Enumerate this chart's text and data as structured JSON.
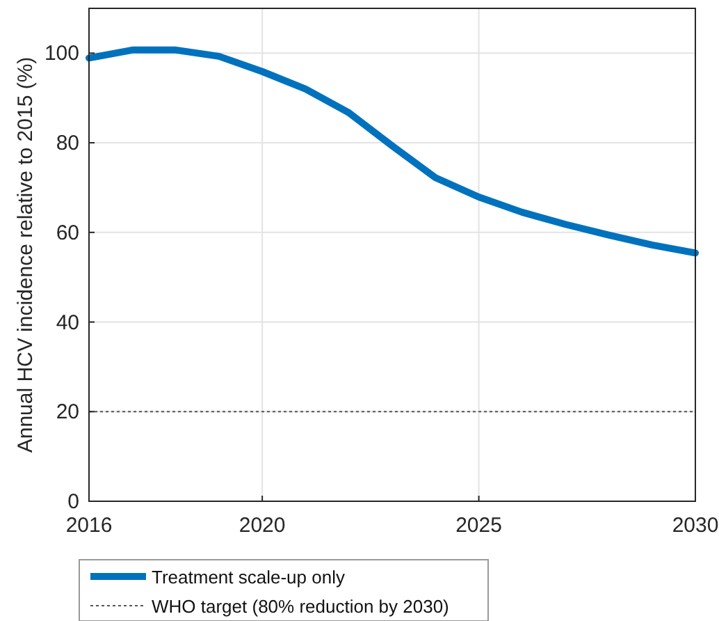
{
  "chart_data": {
    "type": "line",
    "ylabel": "Annual HCV incidence relative to 2015 (%)",
    "x": [
      2016,
      2017,
      2018,
      2019,
      2020,
      2021,
      2022,
      2023,
      2024,
      2025,
      2026,
      2027,
      2028,
      2029,
      2030
    ],
    "series": [
      {
        "name": "Treatment scale-up only",
        "color": "#0072bd",
        "values": [
          98.9,
          100.7,
          100.7,
          99.3,
          95.9,
          92.0,
          86.7,
          79.3,
          72.2,
          67.9,
          64.5,
          61.8,
          59.4,
          57.2,
          55.4
        ]
      }
    ],
    "xlim": [
      2016,
      2030
    ],
    "xticks": [
      2016,
      2020,
      2025,
      2030
    ],
    "ylim": [
      0,
      110
    ],
    "yticks": [
      0,
      20,
      40,
      60,
      80,
      100
    ],
    "ref_lines": [
      {
        "axis": "y",
        "value": 20,
        "label": "WHO target (80% reduction by 2030)",
        "color": "#555555",
        "line_style": "dotted"
      }
    ],
    "grid": true,
    "legend": "bottom left",
    "line_style": "solid",
    "marker": "none"
  }
}
